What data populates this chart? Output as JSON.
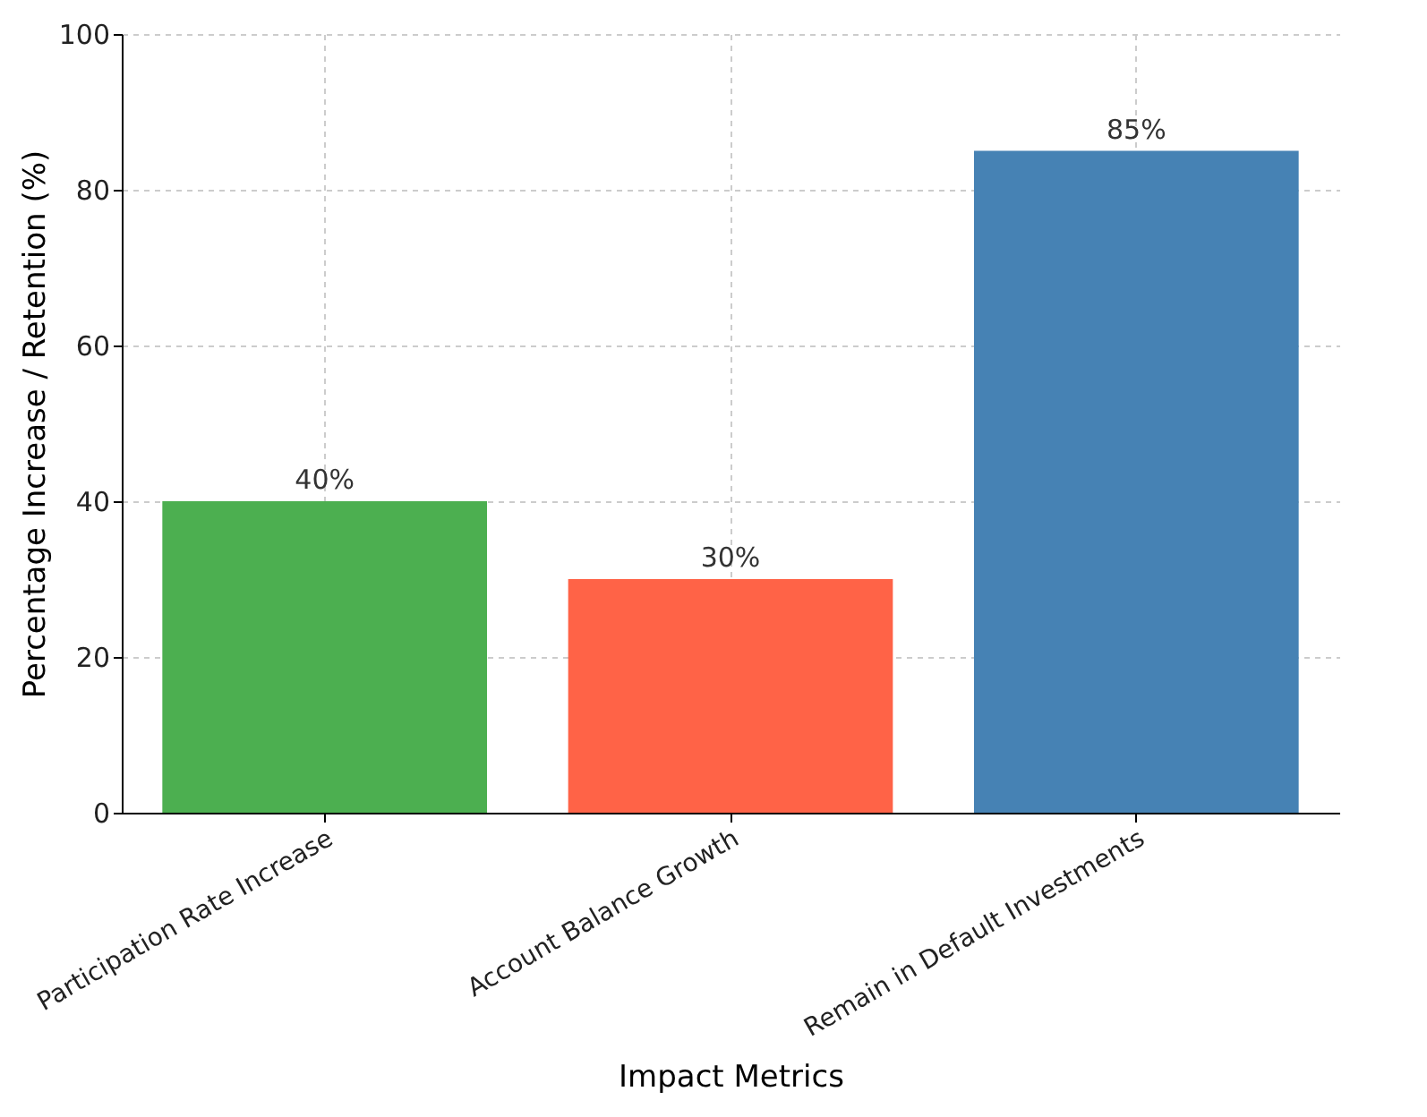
{
  "chart_data": {
    "type": "bar",
    "xlabel": "Impact Metrics",
    "ylabel": "Percentage Increase / Retention (%)",
    "categories": [
      "Participation Rate Increase",
      "Account Balance Growth",
      "Remain in Default Investments"
    ],
    "values": [
      40,
      30,
      85
    ],
    "colors": [
      "#4caf50",
      "#ff6347",
      "#4682b4"
    ],
    "value_labels": [
      "40%",
      "30%",
      "85%"
    ],
    "ylim": [
      0,
      100
    ],
    "yticks": [
      0,
      20,
      40,
      60,
      80,
      100
    ],
    "grid": true
  }
}
